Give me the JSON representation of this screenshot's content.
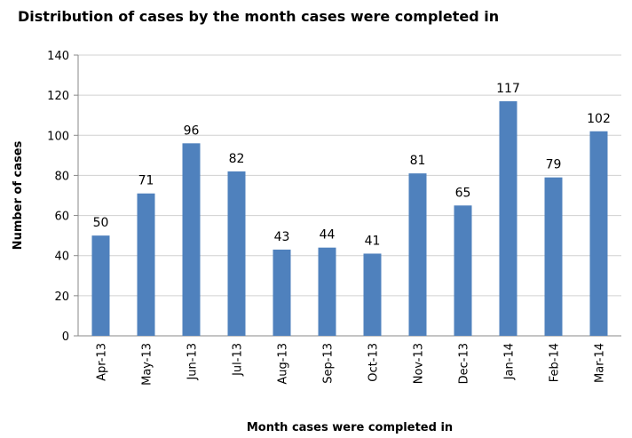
{
  "chart_data": {
    "type": "bar",
    "title": "Distribution of cases by the month cases were completed in",
    "x_label": "Month cases were completed in",
    "y_label": "Number of cases",
    "categories": [
      "Apr-13",
      "May-13",
      "Jun-13",
      "Jul-13",
      "Aug-13",
      "Sep-13",
      "Oct-13",
      "Nov-13",
      "Dec-13",
      "Jan-14",
      "Feb-14",
      "Mar-14"
    ],
    "values": [
      50,
      71,
      96,
      82,
      43,
      44,
      41,
      81,
      65,
      117,
      79,
      102
    ],
    "color": "#4f81bd",
    "ylim": [
      0,
      140
    ],
    "yticks": [
      0,
      20,
      40,
      60,
      80,
      100,
      120,
      140
    ],
    "grid": true
  }
}
